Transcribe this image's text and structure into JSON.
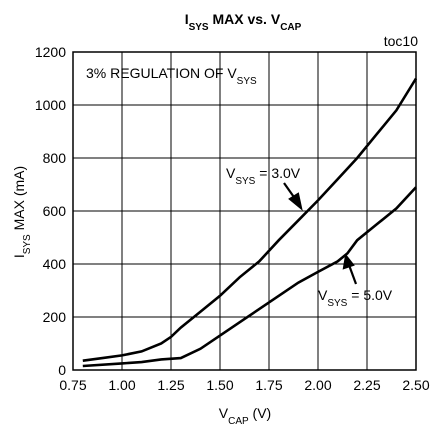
{
  "chart_data": {
    "type": "line",
    "title": [
      "I",
      "SYS",
      " MAX  vs. V",
      "CAP"
    ],
    "x_label": [
      "V",
      "CAP",
      " (V)"
    ],
    "y_label": [
      "I",
      "SYS",
      " MAX (mA)"
    ],
    "annotations": [
      [
        "toc10"
      ],
      [
        "3% REGULATION OF V",
        "SYS"
      ],
      [
        "V",
        "SYS",
        " = 3.0V"
      ],
      [
        "V",
        "SYS",
        " = 5.0V"
      ]
    ],
    "xlim": [
      0.75,
      2.5
    ],
    "xticks": [
      0.75,
      {
        "value": 1,
        "label": "1.00"
      },
      1.25,
      {
        "value": 1.5,
        "label": "1.50"
      },
      1.75,
      {
        "value": 2,
        "label": "2.00"
      },
      2.25,
      {
        "value": 2.5,
        "label": "2.50"
      }
    ],
    "ylim": [
      0,
      1200
    ],
    "yticks": [
      0,
      200,
      400,
      600,
      800,
      1000,
      1200
    ],
    "grid": true,
    "series": [
      {
        "color": "#000000",
        "x": [
          0.8,
          0.9,
          1.0,
          1.1,
          1.2,
          1.25,
          1.3,
          1.4,
          1.5,
          1.6,
          1.7,
          1.8,
          1.9,
          2.0,
          2.1,
          2.2,
          2.3,
          2.4,
          2.5
        ],
        "values": [
          35,
          45,
          55,
          70,
          100,
          125,
          160,
          220,
          280,
          350,
          410,
          490,
          565,
          640,
          720,
          800,
          890,
          980,
          1100
        ]
      },
      {
        "color": "#000000",
        "x": [
          0.8,
          1.0,
          1.1,
          1.2,
          1.3,
          1.4,
          1.5,
          1.6,
          1.7,
          1.8,
          1.9,
          2.0,
          2.1,
          2.15,
          2.2,
          2.3,
          2.4,
          2.5
        ],
        "values": [
          15,
          25,
          30,
          40,
          45,
          80,
          130,
          180,
          230,
          280,
          330,
          370,
          410,
          440,
          490,
          550,
          610,
          690
        ]
      }
    ]
  }
}
